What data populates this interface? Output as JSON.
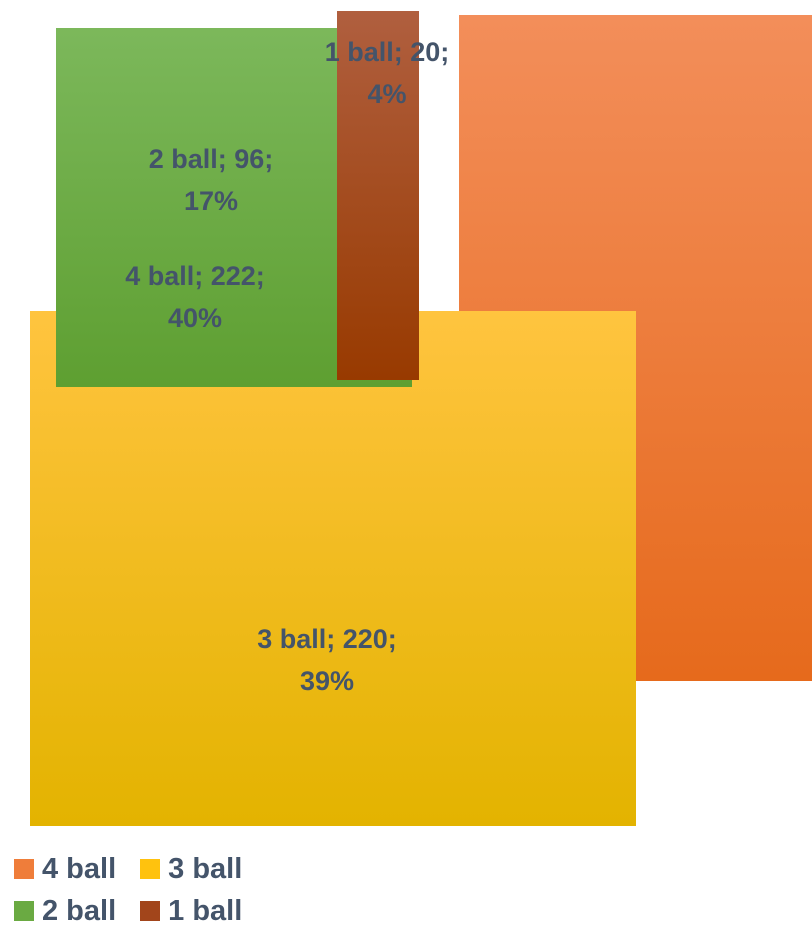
{
  "chart_data": {
    "type": "treemap",
    "items": [
      {
        "name": "4 ball",
        "value": 222,
        "percent": "40%",
        "label": [
          "4 ball; 222;",
          "40%"
        ],
        "color_top": "#f38e5a",
        "color_bottom": "#e66a1c"
      },
      {
        "name": "3 ball",
        "value": 220,
        "percent": "39%",
        "label": [
          "3 ball; 220;",
          "39%"
        ],
        "color_top": "#ffc43f",
        "color_bottom": "#e3b300"
      },
      {
        "name": "2 ball",
        "value": 96,
        "percent": "17%",
        "label": [
          "2 ball; 96;",
          "17%"
        ],
        "color_top": "#7cb85b",
        "color_bottom": "#5e9f31"
      },
      {
        "name": "1 ball",
        "value": 20,
        "percent": "4%",
        "label": [
          "1 ball; 20;",
          "4%"
        ],
        "color_top": "#b05f3f",
        "color_bottom": "#983a00"
      }
    ],
    "legend": {
      "rows": [
        [
          {
            "label": "4 ball",
            "color": "#ef7d3a"
          },
          {
            "label": "3 ball",
            "color": "#ffc20e"
          }
        ],
        [
          {
            "label": "2 ball",
            "color": "#6aaa42"
          },
          {
            "label": "1 ball",
            "color": "#a2451b"
          }
        ]
      ]
    }
  }
}
